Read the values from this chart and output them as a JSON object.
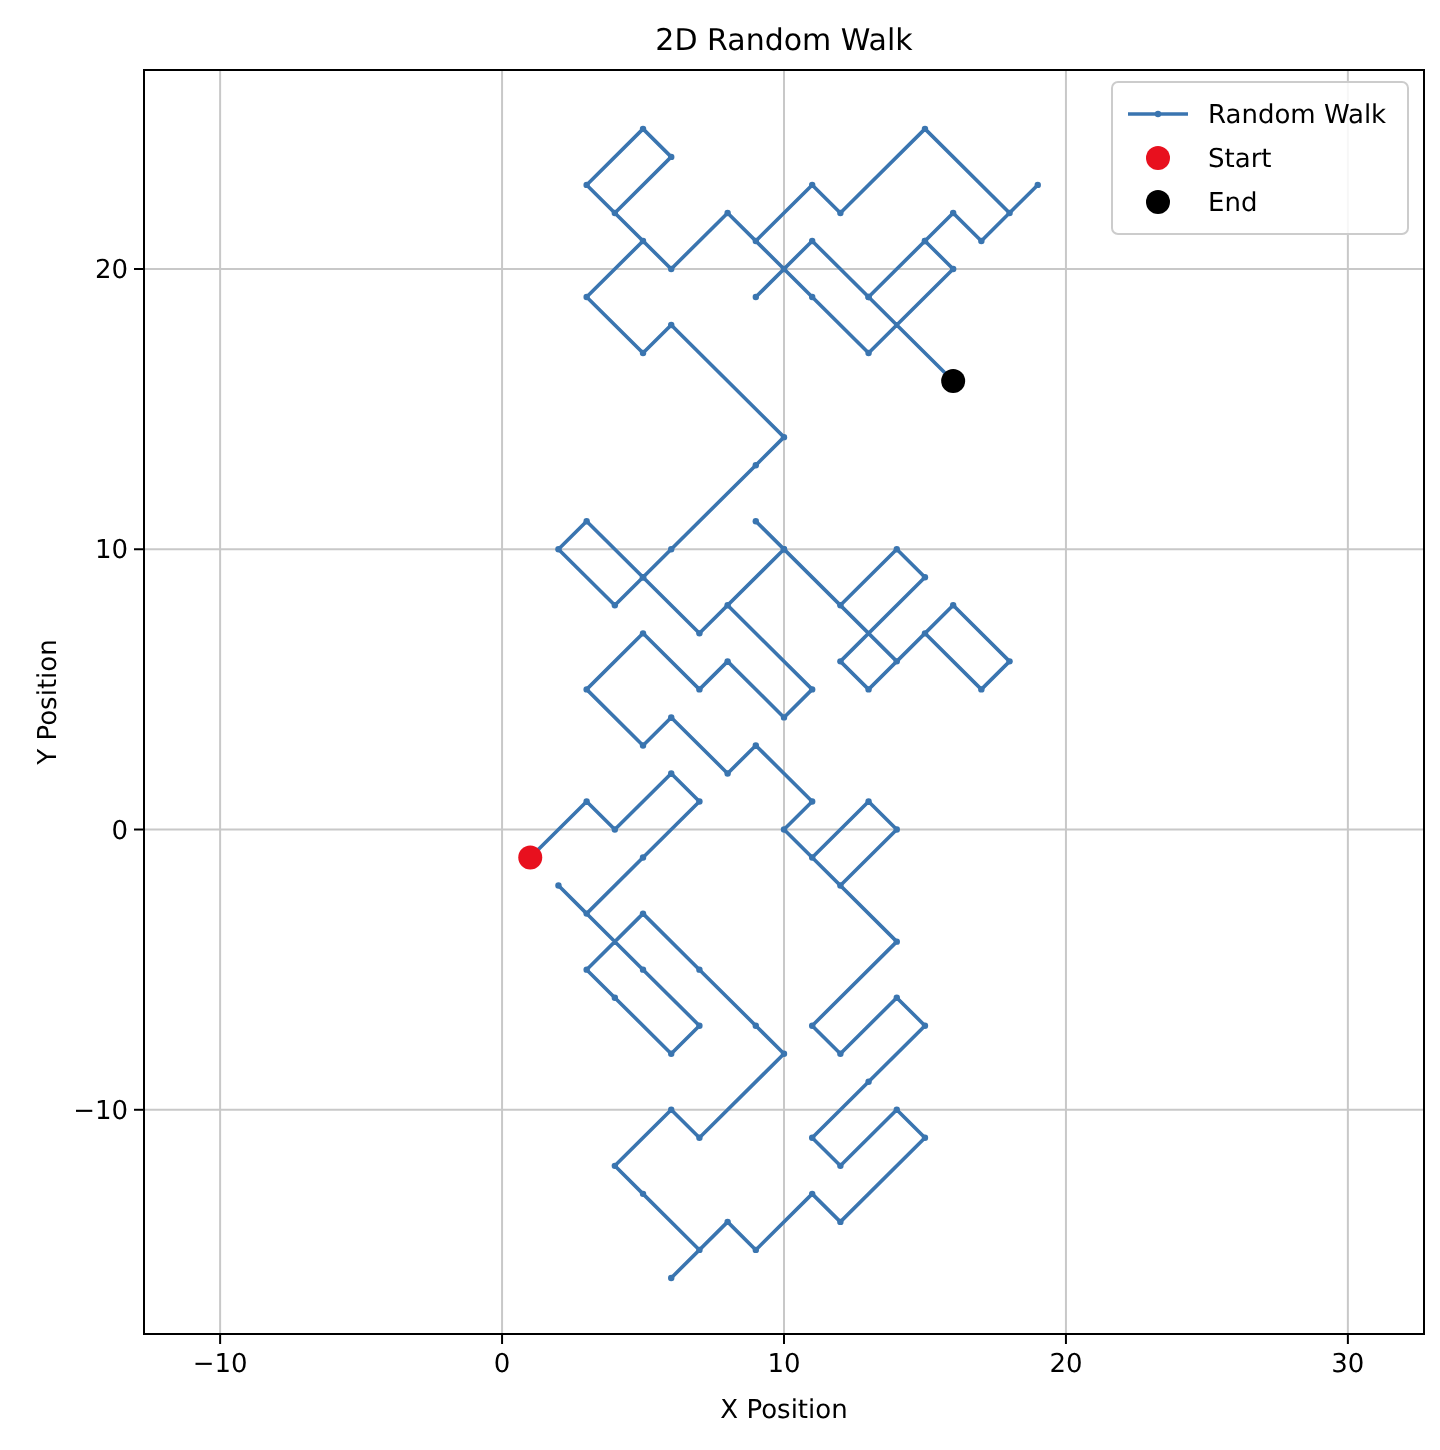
{
  "chart_data": {
    "type": "line",
    "title": "2D Random Walk",
    "xlabel": "X Position",
    "ylabel": "Y Position",
    "xlim": [
      -12.7,
      32.7
    ],
    "ylim": [
      -18,
      27.1
    ],
    "xticks": [
      -10,
      0,
      10,
      20,
      30
    ],
    "yticks": [
      -10,
      0,
      10,
      20
    ],
    "grid": true,
    "legend": "top right",
    "series": [
      {
        "name": "Random Walk",
        "color": "#3a75b0",
        "marker": "circle",
        "line_style": "solid",
        "x": [
          1,
          3,
          4,
          6,
          7,
          5,
          3,
          2,
          5,
          7,
          6,
          4,
          3,
          5,
          7,
          9,
          10,
          7,
          6,
          4,
          5,
          7,
          6,
          8,
          9,
          11,
          12,
          15,
          14,
          12,
          11,
          13,
          15,
          14,
          12,
          11,
          14,
          11,
          13,
          14,
          12,
          10,
          11,
          9,
          8,
          6,
          5,
          3,
          5,
          7,
          8,
          10,
          11,
          8,
          10,
          9,
          14,
          16,
          18,
          17,
          15,
          13,
          12,
          15,
          14,
          12,
          10,
          7,
          5,
          6,
          4,
          2,
          3,
          5,
          9,
          10,
          6,
          5,
          3,
          5,
          4,
          6,
          5,
          3,
          6,
          8,
          10,
          9,
          11,
          13,
          15,
          16,
          13,
          11,
          9,
          11,
          12,
          15,
          18,
          19,
          17,
          16,
          15,
          13,
          16
        ],
        "values": [
          -1,
          1,
          0,
          2,
          1,
          -1,
          -3,
          -2,
          -5,
          -7,
          -8,
          -6,
          -5,
          -3,
          -5,
          -7,
          -8,
          -11,
          -10,
          -12,
          -13,
          -15,
          -16,
          -14,
          -15,
          -13,
          -14,
          -11,
          -10,
          -12,
          -11,
          -9,
          -7,
          -6,
          -8,
          -7,
          -4,
          -1,
          1,
          0,
          -2,
          0,
          1,
          3,
          2,
          4,
          3,
          5,
          7,
          5,
          6,
          4,
          5,
          8,
          10,
          11,
          6,
          8,
          6,
          5,
          7,
          5,
          6,
          9,
          10,
          8,
          10,
          7,
          9,
          10,
          8,
          10,
          11,
          9,
          13,
          14,
          18,
          17,
          19,
          21,
          22,
          24,
          25,
          23,
          20,
          22,
          20,
          19,
          21,
          19,
          21,
          20,
          17,
          19,
          21,
          23,
          22,
          25,
          22,
          23,
          21,
          22,
          21,
          19,
          16
        ]
      },
      {
        "name": "Start",
        "type": "scatter",
        "color": "#e8101e",
        "marker": "circle",
        "x": [
          1
        ],
        "values": [
          -1
        ]
      },
      {
        "name": "End",
        "type": "scatter",
        "color": "#000000",
        "marker": "circle",
        "x": [
          16
        ],
        "values": [
          16
        ]
      }
    ]
  }
}
